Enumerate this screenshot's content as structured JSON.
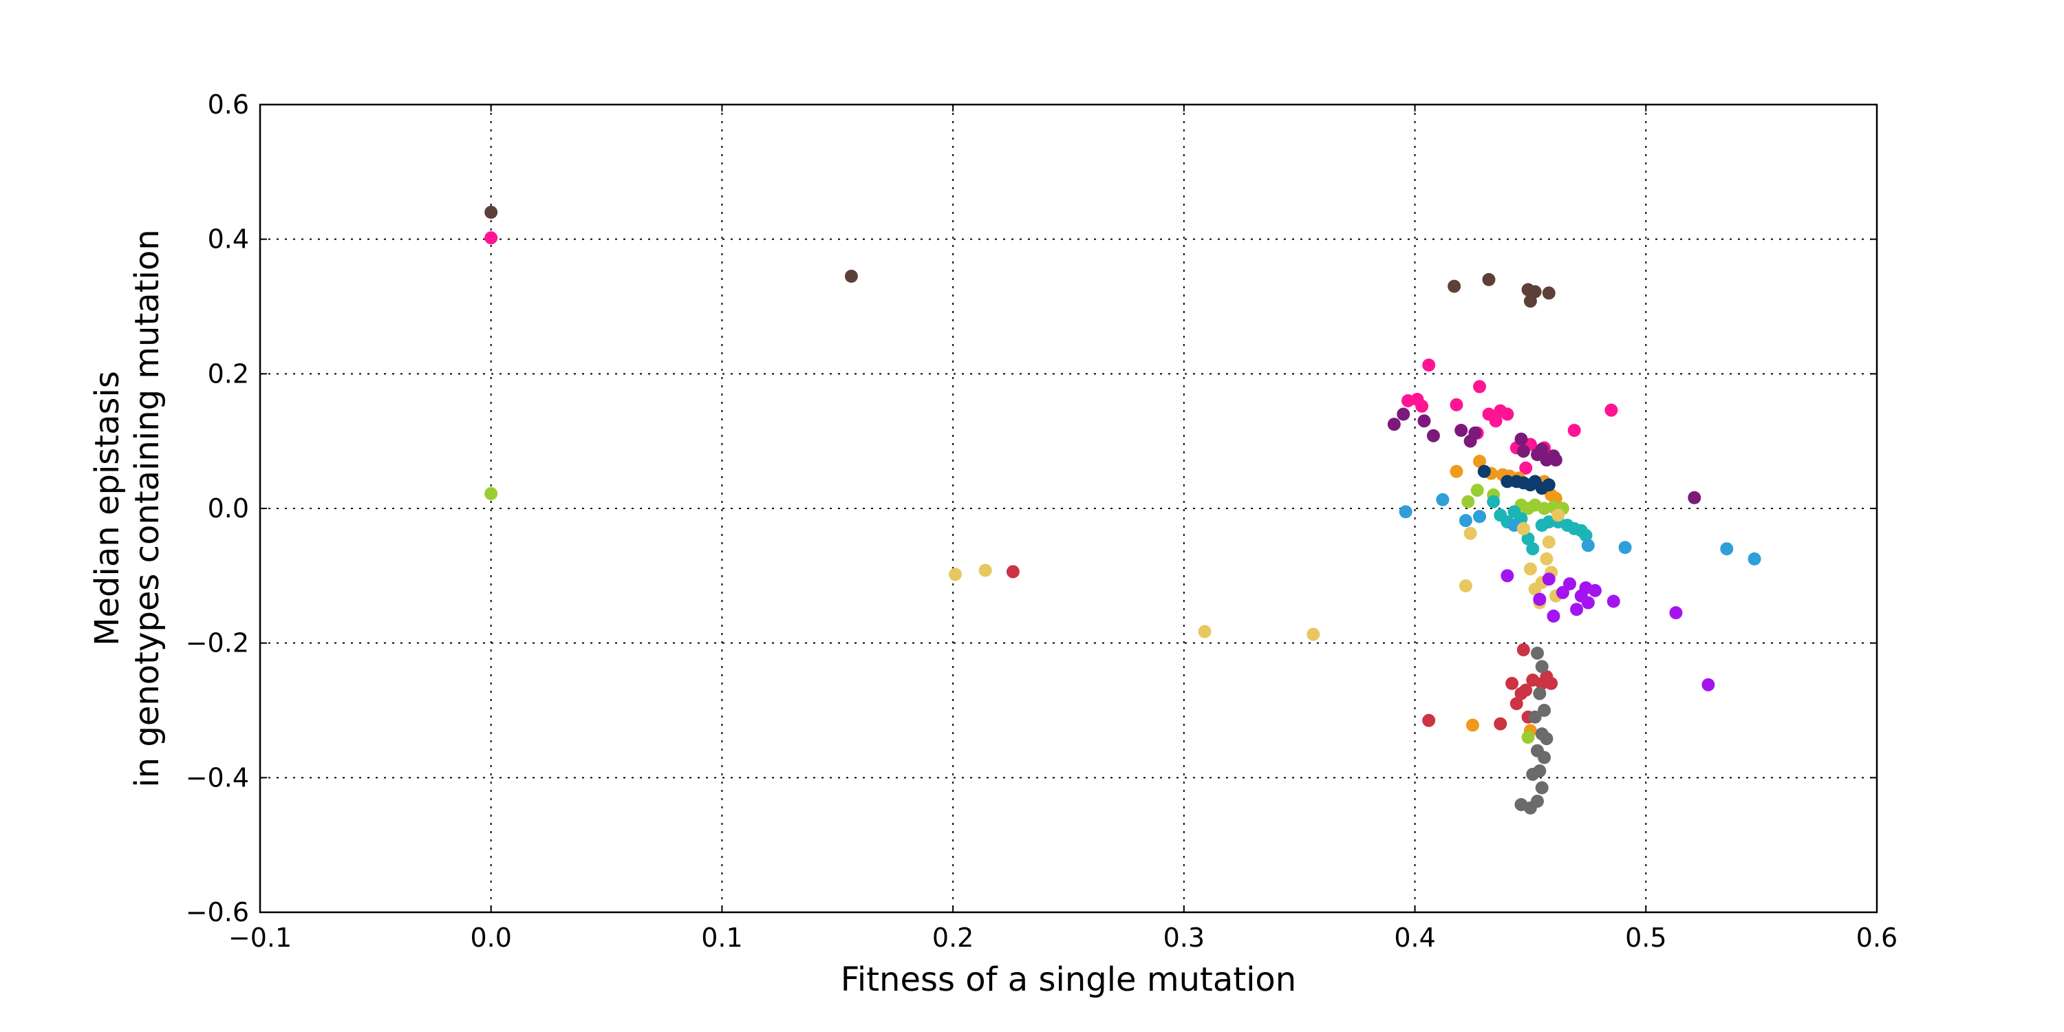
{
  "chart_data": {
    "type": "scatter",
    "title": "",
    "xlabel": "Fitness of a single mutation",
    "ylabel_lines": [
      "Median epistasis",
      "in genotypes containing mutation"
    ],
    "xlim": [
      -0.1,
      0.6
    ],
    "ylim": [
      -0.6,
      0.6
    ],
    "x_ticks": [
      -0.1,
      0.0,
      0.1,
      0.2,
      0.3,
      0.4,
      0.5,
      0.6
    ],
    "y_ticks": [
      -0.6,
      -0.4,
      -0.2,
      0.0,
      0.2,
      0.4,
      0.6
    ],
    "x_tick_labels": [
      "−0.1",
      "0.0",
      "0.1",
      "0.2",
      "0.3",
      "0.4",
      "0.5",
      "0.6"
    ],
    "y_tick_labels": [
      "−0.6",
      "−0.4",
      "−0.2",
      "0.0",
      "0.2",
      "0.4",
      "0.6"
    ],
    "grid": true,
    "legend": "none",
    "series": [
      {
        "color": "#5d4037",
        "points": [
          [
            0.0,
            0.44
          ],
          [
            0.156,
            0.345
          ],
          [
            0.417,
            0.33
          ],
          [
            0.432,
            0.34
          ],
          [
            0.449,
            0.325
          ],
          [
            0.452,
            0.322
          ],
          [
            0.458,
            0.32
          ],
          [
            0.45,
            0.308
          ]
        ]
      },
      {
        "color": "#ff1493",
        "points": [
          [
            0.0,
            0.402
          ],
          [
            0.406,
            0.213
          ],
          [
            0.428,
            0.181
          ],
          [
            0.397,
            0.16
          ],
          [
            0.401,
            0.162
          ],
          [
            0.403,
            0.152
          ],
          [
            0.418,
            0.154
          ],
          [
            0.432,
            0.14
          ],
          [
            0.437,
            0.145
          ],
          [
            0.44,
            0.14
          ],
          [
            0.435,
            0.13
          ],
          [
            0.469,
            0.116
          ],
          [
            0.485,
            0.146
          ],
          [
            0.427,
            0.112
          ],
          [
            0.444,
            0.09
          ],
          [
            0.45,
            0.095
          ],
          [
            0.456,
            0.09
          ],
          [
            0.448,
            0.06
          ]
        ]
      },
      {
        "color": "#7b1a7b",
        "points": [
          [
            0.391,
            0.125
          ],
          [
            0.395,
            0.14
          ],
          [
            0.404,
            0.13
          ],
          [
            0.408,
            0.108
          ],
          [
            0.42,
            0.116
          ],
          [
            0.424,
            0.1
          ],
          [
            0.426,
            0.112
          ],
          [
            0.446,
            0.103
          ],
          [
            0.447,
            0.085
          ],
          [
            0.453,
            0.08
          ],
          [
            0.455,
            0.088
          ],
          [
            0.457,
            0.072
          ],
          [
            0.46,
            0.078
          ],
          [
            0.461,
            0.072
          ],
          [
            0.521,
            0.016
          ]
        ]
      },
      {
        "color": "#ef9a1b",
        "points": [
          [
            0.418,
            0.055
          ],
          [
            0.428,
            0.07
          ],
          [
            0.433,
            0.052
          ],
          [
            0.438,
            0.05
          ],
          [
            0.441,
            0.048
          ],
          [
            0.445,
            0.045
          ],
          [
            0.452,
            0.04
          ],
          [
            0.456,
            0.04
          ],
          [
            0.459,
            0.02
          ],
          [
            0.461,
            0.015
          ],
          [
            0.425,
            -0.322
          ],
          [
            0.45,
            -0.33
          ]
        ]
      },
      {
        "color": "#0d3b6e",
        "points": [
          [
            0.43,
            0.055
          ],
          [
            0.44,
            0.04
          ],
          [
            0.444,
            0.04
          ],
          [
            0.447,
            0.038
          ],
          [
            0.45,
            0.035
          ],
          [
            0.452,
            0.04
          ],
          [
            0.455,
            0.03
          ],
          [
            0.458,
            0.035
          ]
        ]
      },
      {
        "color": "#9acd32",
        "points": [
          [
            0.0,
            0.022
          ],
          [
            0.423,
            0.01
          ],
          [
            0.427,
            0.027
          ],
          [
            0.434,
            0.02
          ],
          [
            0.446,
            0.005
          ],
          [
            0.449,
            0.0
          ],
          [
            0.452,
            0.005
          ],
          [
            0.456,
            0.0
          ],
          [
            0.46,
            0.002
          ],
          [
            0.464,
            0.0
          ],
          [
            0.449,
            -0.34
          ]
        ]
      },
      {
        "color": "#1cb5b5",
        "points": [
          [
            0.434,
            0.01
          ],
          [
            0.437,
            -0.01
          ],
          [
            0.44,
            -0.02
          ],
          [
            0.443,
            -0.005
          ],
          [
            0.446,
            -0.015
          ],
          [
            0.447,
            -0.03
          ],
          [
            0.449,
            -0.045
          ],
          [
            0.451,
            -0.06
          ],
          [
            0.455,
            -0.025
          ],
          [
            0.458,
            -0.02
          ],
          [
            0.462,
            -0.02
          ],
          [
            0.466,
            -0.025
          ],
          [
            0.469,
            -0.03
          ],
          [
            0.472,
            -0.033
          ],
          [
            0.474,
            -0.04
          ]
        ]
      },
      {
        "color": "#2e9fd8",
        "points": [
          [
            0.396,
            -0.005
          ],
          [
            0.412,
            0.013
          ],
          [
            0.422,
            -0.018
          ],
          [
            0.428,
            -0.012
          ],
          [
            0.443,
            -0.025
          ],
          [
            0.475,
            -0.055
          ],
          [
            0.491,
            -0.058
          ],
          [
            0.535,
            -0.06
          ],
          [
            0.547,
            -0.075
          ]
        ]
      },
      {
        "color": "#e8c760",
        "points": [
          [
            0.201,
            -0.098
          ],
          [
            0.214,
            -0.092
          ],
          [
            0.309,
            -0.183
          ],
          [
            0.356,
            -0.187
          ],
          [
            0.422,
            -0.115
          ],
          [
            0.424,
            -0.037
          ],
          [
            0.447,
            -0.03
          ],
          [
            0.45,
            -0.09
          ],
          [
            0.452,
            -0.12
          ],
          [
            0.454,
            -0.14
          ],
          [
            0.455,
            -0.11
          ],
          [
            0.457,
            -0.075
          ],
          [
            0.458,
            -0.05
          ],
          [
            0.459,
            -0.095
          ],
          [
            0.461,
            -0.13
          ],
          [
            0.462,
            -0.01
          ]
        ]
      },
      {
        "color": "#cc3344",
        "points": [
          [
            0.226,
            -0.094
          ],
          [
            0.406,
            -0.315
          ],
          [
            0.437,
            -0.32
          ],
          [
            0.442,
            -0.26
          ],
          [
            0.444,
            -0.29
          ],
          [
            0.446,
            -0.275
          ],
          [
            0.447,
            -0.21
          ],
          [
            0.448,
            -0.27
          ],
          [
            0.449,
            -0.31
          ],
          [
            0.451,
            -0.255
          ],
          [
            0.455,
            -0.26
          ],
          [
            0.457,
            -0.25
          ],
          [
            0.459,
            -0.26
          ]
        ]
      },
      {
        "color": "#a314f0",
        "points": [
          [
            0.44,
            -0.1
          ],
          [
            0.454,
            -0.135
          ],
          [
            0.458,
            -0.105
          ],
          [
            0.46,
            -0.16
          ],
          [
            0.464,
            -0.125
          ],
          [
            0.467,
            -0.112
          ],
          [
            0.47,
            -0.15
          ],
          [
            0.472,
            -0.13
          ],
          [
            0.474,
            -0.118
          ],
          [
            0.475,
            -0.14
          ],
          [
            0.478,
            -0.122
          ],
          [
            0.486,
            -0.138
          ],
          [
            0.513,
            -0.155
          ],
          [
            0.527,
            -0.262
          ]
        ]
      },
      {
        "color": "#6b6b6b",
        "points": [
          [
            0.453,
            -0.215
          ],
          [
            0.455,
            -0.235
          ],
          [
            0.454,
            -0.275
          ],
          [
            0.456,
            -0.3
          ],
          [
            0.452,
            -0.31
          ],
          [
            0.455,
            -0.335
          ],
          [
            0.457,
            -0.342
          ],
          [
            0.453,
            -0.36
          ],
          [
            0.456,
            -0.37
          ],
          [
            0.454,
            -0.39
          ],
          [
            0.451,
            -0.395
          ],
          [
            0.455,
            -0.415
          ],
          [
            0.446,
            -0.44
          ],
          [
            0.45,
            -0.445
          ],
          [
            0.453,
            -0.435
          ]
        ]
      }
    ]
  }
}
